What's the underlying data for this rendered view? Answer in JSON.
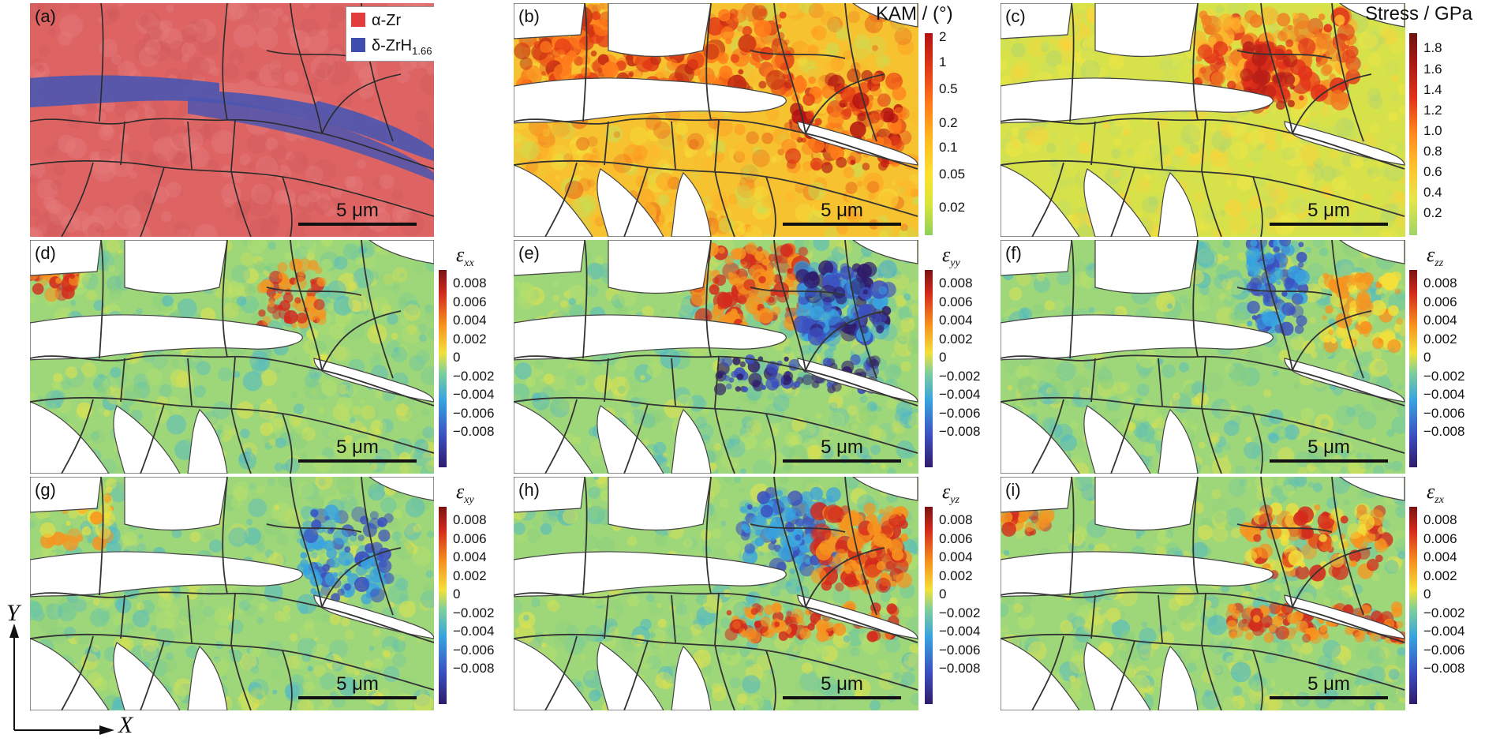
{
  "colors": {
    "alpha_zr": "#e45b5b",
    "delta_hydride": "#4a55b0",
    "grain_boundary": "#333333",
    "kam_scale": [
      "#8fd05a",
      "#d7e43a",
      "#ffe12e",
      "#ffb81f",
      "#ff7a1a",
      "#e23b16",
      "#b31212"
    ],
    "stress_scale": [
      "#9fd46a",
      "#e7e64a",
      "#ffc12c",
      "#ff8a1e",
      "#e2321a",
      "#a51815",
      "#6b1410"
    ],
    "strain_scale": [
      "#2f1b6a",
      "#3b4fc0",
      "#38a3e0",
      "#7ecf9a",
      "#f4e03a",
      "#f7931e",
      "#d42a1c",
      "#7a1212"
    ]
  },
  "scale_bar_label": "5 μm",
  "panels": [
    {
      "id": "a",
      "label": "(a)",
      "type": "phase",
      "scale_bar": "5 μm"
    },
    {
      "id": "b",
      "label": "(b)",
      "type": "kam",
      "scale_bar": "5 μm"
    },
    {
      "id": "c",
      "label": "(c)",
      "type": "stress",
      "scale_bar": "5 μm"
    },
    {
      "id": "d",
      "label": "(d)",
      "type": "strain",
      "scale_bar": "5 μm"
    },
    {
      "id": "e",
      "label": "(e)",
      "type": "strain",
      "scale_bar": "5 μm"
    },
    {
      "id": "f",
      "label": "(f)",
      "type": "strain",
      "scale_bar": "5 μm"
    },
    {
      "id": "g",
      "label": "(g)",
      "type": "strain",
      "scale_bar": "5 μm"
    },
    {
      "id": "h",
      "label": "(h)",
      "type": "strain",
      "scale_bar": "5 μm"
    },
    {
      "id": "i",
      "label": "(i)",
      "type": "strain",
      "scale_bar": "5 μm"
    }
  ],
  "legend": {
    "alpha_label": "α-Zr",
    "delta_label": "δ-ZrH",
    "delta_subscript": "1.66"
  },
  "colorbars": {
    "kam": {
      "title": "KAM / (°)",
      "ticks": [
        "2",
        "1",
        "0.5",
        "0.2",
        "0.1",
        "0.05",
        "0.02"
      ],
      "scale": "log"
    },
    "stress": {
      "title": "Stress / GPa",
      "ticks": [
        "1.8",
        "1.6",
        "1.4",
        "1.2",
        "1.0",
        "0.8",
        "0.6",
        "0.4",
        "0.2"
      ]
    },
    "strain_ticks": [
      "0.008",
      "0.006",
      "0.004",
      "0.002",
      "0",
      "−0.002",
      "−0.004",
      "−0.006",
      "−0.008"
    ],
    "strain_titles": {
      "d": {
        "sym": "ε",
        "sub": "xx"
      },
      "e": {
        "sym": "ε",
        "sub": "yy"
      },
      "f": {
        "sym": "ε",
        "sub": "zz"
      },
      "g": {
        "sym": "ε",
        "sub": "xy"
      },
      "h": {
        "sym": "ε",
        "sub": "yz"
      },
      "i": {
        "sym": "ε",
        "sub": "zx"
      }
    }
  },
  "axes": {
    "y_label": "Y",
    "x_label": "X"
  }
}
